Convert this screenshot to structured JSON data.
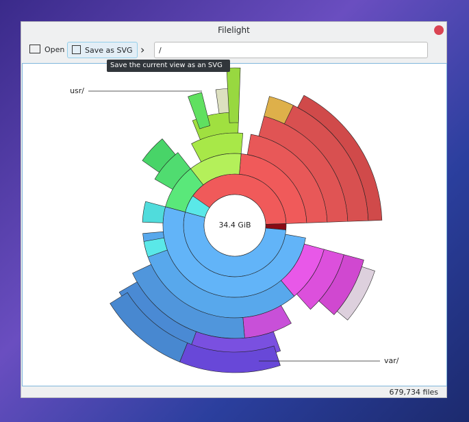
{
  "window": {
    "title": "Filelight"
  },
  "toolbar": {
    "open": "Open",
    "save": "Save as SVG",
    "path": "/"
  },
  "tooltip": "Save the current view as an SVG file",
  "map": {
    "center": "34.4 GiB",
    "labels": [
      "usr/",
      "var/"
    ]
  },
  "status": "679,734 files"
}
